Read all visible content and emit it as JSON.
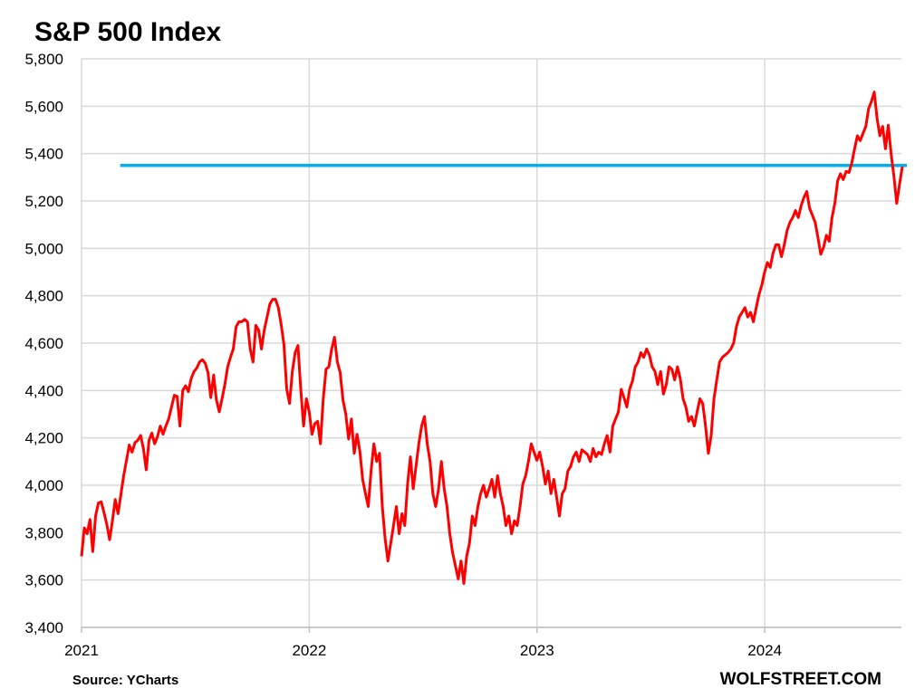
{
  "chart_data": {
    "type": "line",
    "title": "S&P 500  Index",
    "source": "Source: YCharts",
    "watermark": "WOLFSTREET.COM",
    "xlabel": "",
    "ylabel": "",
    "ylim": [
      3400,
      5800
    ],
    "yticks": [
      3400,
      3600,
      3800,
      4000,
      4200,
      4400,
      4600,
      4800,
      5000,
      5200,
      5400,
      5600,
      5800
    ],
    "ytick_labels": [
      "3,400",
      "3,600",
      "3,800",
      "4,000",
      "4,200",
      "4,400",
      "4,600",
      "4,800",
      "5,000",
      "5,200",
      "5,400",
      "5,600",
      "5,800"
    ],
    "xlim": [
      2021.0,
      2024.6
    ],
    "xticks": [
      2021,
      2022,
      2023,
      2024
    ],
    "xtick_labels": [
      "2021",
      "2022",
      "2023",
      "2024"
    ],
    "grid": true,
    "series": [
      {
        "name": "S&P 500",
        "color": "#ff0000",
        "start": 2021.0,
        "end": 2024.604,
        "values": [
          3700,
          3820,
          3795,
          3855,
          3720,
          3870,
          3925,
          3930,
          3885,
          3835,
          3770,
          3850,
          3940,
          3880,
          3960,
          4040,
          4105,
          4170,
          4140,
          4180,
          4190,
          4210,
          4155,
          4065,
          4190,
          4220,
          4175,
          4205,
          4250,
          4215,
          4250,
          4280,
          4330,
          4380,
          4375,
          4250,
          4400,
          4420,
          4395,
          4450,
          4480,
          4495,
          4520,
          4530,
          4515,
          4475,
          4370,
          4465,
          4360,
          4310,
          4365,
          4425,
          4500,
          4540,
          4575,
          4670,
          4690,
          4690,
          4700,
          4690,
          4575,
          4520,
          4675,
          4655,
          4575,
          4655,
          4710,
          4765,
          4785,
          4785,
          4750,
          4680,
          4595,
          4405,
          4345,
          4480,
          4560,
          4590,
          4405,
          4250,
          4365,
          4310,
          4215,
          4260,
          4270,
          4175,
          4365,
          4490,
          4500,
          4575,
          4625,
          4520,
          4475,
          4360,
          4300,
          4195,
          4280,
          4135,
          4215,
          4145,
          4025,
          3965,
          3910,
          4060,
          4175,
          4100,
          4135,
          3910,
          3775,
          3680,
          3755,
          3830,
          3910,
          3795,
          3880,
          3830,
          4005,
          4120,
          3985,
          4080,
          4175,
          4250,
          4290,
          4175,
          4100,
          3965,
          3910,
          3985,
          4100,
          3985,
          3910,
          3795,
          3715,
          3660,
          3605,
          3680,
          3585,
          3700,
          3755,
          3870,
          3830,
          3910,
          3965,
          4000,
          3950,
          3985,
          4025,
          3950,
          4040,
          3965,
          3910,
          3830,
          3870,
          3795,
          3850,
          3830,
          3910,
          4005,
          4040,
          4100,
          4175,
          4140,
          4105,
          4140,
          4080,
          4005,
          4060,
          3965,
          4025,
          3950,
          3870,
          3965,
          3985,
          4060,
          4080,
          4120,
          4140,
          4100,
          4150,
          4140,
          4130,
          4100,
          4155,
          4120,
          4140,
          4130,
          4175,
          4210,
          4140,
          4250,
          4280,
          4310,
          4405,
          4370,
          4330,
          4405,
          4440,
          4500,
          4520,
          4560,
          4540,
          4575,
          4550,
          4500,
          4480,
          4425,
          4480,
          4385,
          4425,
          4500,
          4490,
          4445,
          4500,
          4450,
          4365,
          4330,
          4270,
          4290,
          4250,
          4310,
          4365,
          4345,
          4250,
          4135,
          4210,
          4365,
          4445,
          4520,
          4540,
          4550,
          4560,
          4575,
          4600,
          4670,
          4710,
          4730,
          4750,
          4710,
          4730,
          4690,
          4750,
          4805,
          4845,
          4900,
          4940,
          4920,
          4980,
          5015,
          5015,
          4965,
          5015,
          5075,
          5110,
          5130,
          5160,
          5130,
          5180,
          5215,
          5240,
          5170,
          5140,
          5110,
          5045,
          4975,
          5005,
          5055,
          5030,
          5130,
          5190,
          5285,
          5315,
          5290,
          5325,
          5320,
          5360,
          5420,
          5475,
          5455,
          5485,
          5515,
          5590,
          5620,
          5660,
          5550,
          5475,
          5515,
          5420,
          5520,
          5400,
          5305,
          5190,
          5270,
          5345
        ]
      }
    ],
    "reference_line": {
      "value": 5350,
      "from": 2021.17,
      "color": "#00b0f0"
    }
  }
}
